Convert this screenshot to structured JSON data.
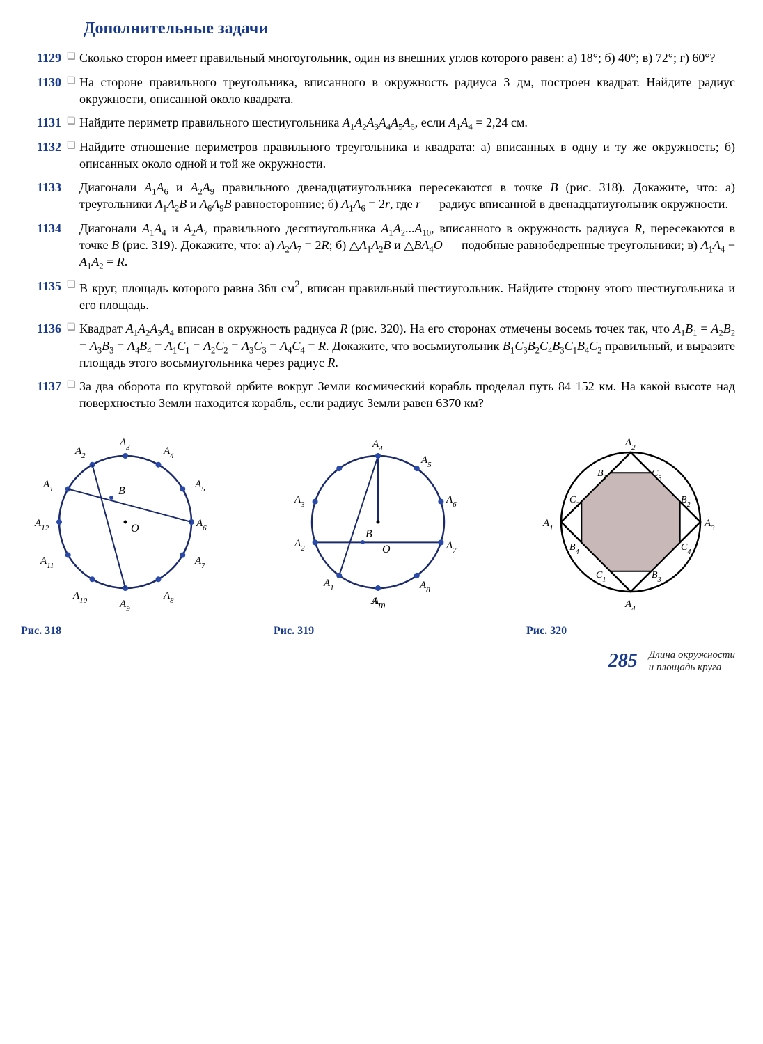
{
  "title": "Дополнительные задачи",
  "problems": {
    "p1129": {
      "num": "1129",
      "check": true,
      "text": "Сколько сторон имеет правильный многоугольник, один из внешних углов которого равен: а) 18°; б) 40°; в) 72°; г) 60°?"
    },
    "p1130": {
      "num": "1130",
      "check": true,
      "text": "На стороне правильного треугольника, вписанного в окружность радиуса 3 дм, построен квадрат. Найдите радиус окружности, описанной около квадрата."
    },
    "p1131": {
      "num": "1131",
      "check": true,
      "html": "Найдите периметр правильного шестиугольника <i>A</i><sub>1</sub><i>A</i><sub>2</sub><i>A</i><sub>3</sub><i>A</i><sub>4</sub><i>A</i><sub>5</sub><i>A</i><sub>6</sub>, если <i>A</i><sub>1</sub><i>A</i><sub>4</sub> = 2,24 см."
    },
    "p1132": {
      "num": "1132",
      "check": true,
      "text": "Найдите отношение периметров правильного треугольника и квадрата: а) вписанных в одну и ту же окружность; б) описанных около одной и той же окружности."
    },
    "p1133": {
      "num": "1133",
      "check": false,
      "html": "Диагонали <i>A</i><sub>1</sub><i>A</i><sub>6</sub> и <i>A</i><sub>2</sub><i>A</i><sub>9</sub> правильного двенадцатиугольника пересекаются в точке <i>B</i> (рис. 318). Докажите, что: а) треугольники <i>A</i><sub>1</sub><i>A</i><sub>2</sub><i>B</i> и <i>A</i><sub>6</sub><i>A</i><sub>9</sub><i>B</i> равносторонние; б) <i>A</i><sub>1</sub><i>A</i><sub>6</sub> = 2<i>r</i>, где <i>r</i> — радиус вписанной в двенадцатиугольник окружности."
    },
    "p1134": {
      "num": "1134",
      "check": false,
      "html": "Диагонали <i>A</i><sub>1</sub><i>A</i><sub>4</sub> и <i>A</i><sub>2</sub><i>A</i><sub>7</sub> правильного десятиугольника <i>A</i><sub>1</sub><i>A</i><sub>2</sub>...<i>A</i><sub>10</sub>, вписанного в окружность радиуса <i>R</i>, пересекаются в точке <i>B</i> (рис. 319). Докажите, что: а) <i>A</i><sub>2</sub><i>A</i><sub>7</sub> = 2<i>R</i>; б) △<i>A</i><sub>1</sub><i>A</i><sub>2</sub><i>B</i> и △<i>BA</i><sub>4</sub><i>O</i> — подобные равнобедренные треугольники; в) <i>A</i><sub>1</sub><i>A</i><sub>4</sub> − <i>A</i><sub>1</sub><i>A</i><sub>2</sub> = <i>R</i>."
    },
    "p1135": {
      "num": "1135",
      "check": true,
      "html": "В круг, площадь которого равна 36π см<sup>2</sup>, вписан правильный шестиугольник. Найдите сторону этого шестиугольника и его площадь."
    },
    "p1136": {
      "num": "1136",
      "check": true,
      "html": "Квадрат <i>A</i><sub>1</sub><i>A</i><sub>2</sub><i>A</i><sub>3</sub><i>A</i><sub>4</sub> вписан в окружность радиуса <i>R</i> (рис. 320). На его сторонах отмечены восемь точек так, что <i>A</i><sub>1</sub><i>B</i><sub>1</sub> = <i>A</i><sub>2</sub><i>B</i><sub>2</sub> = <i>A</i><sub>3</sub><i>B</i><sub>3</sub> = <i>A</i><sub>4</sub><i>B</i><sub>4</sub> = <i>A</i><sub>1</sub><i>C</i><sub>1</sub> = <i>A</i><sub>2</sub><i>C</i><sub>2</sub> = <i>A</i><sub>3</sub><i>C</i><sub>3</sub> = <i>A</i><sub>4</sub><i>C</i><sub>4</sub> = <i>R</i>. Докажите, что восьмиугольник <i>B</i><sub>1</sub><i>C</i><sub>3</sub><i>B</i><sub>2</sub><i>C</i><sub>4</sub><i>B</i><sub>3</sub><i>C</i><sub>1</sub><i>B</i><sub>4</sub><i>C</i><sub>2</sub> правильный, и выразите площадь этого восьмиугольника через радиус <i>R</i>."
    },
    "p1137": {
      "num": "1137",
      "check": true,
      "text": "За два оборота по круговой орбите вокруг Земли космический корабль проделал путь 84 152 км. На какой высоте над поверхностью Земли находится корабль, если радиус Земли равен 6370 км?"
    }
  },
  "figures": {
    "fig318": {
      "label": "Рис. 318"
    },
    "fig319": {
      "label": "Рис. 319"
    },
    "fig320": {
      "label": "Рис. 320"
    }
  },
  "footer": {
    "page": "285",
    "line1": "Длина окружности",
    "line2": "и площадь круга"
  },
  "colors": {
    "accent": "#1a3a8a",
    "stroke": "#1a2a6a",
    "fill_dot": "#2a4aaa",
    "octagon_fill": "#c8b8b8"
  }
}
